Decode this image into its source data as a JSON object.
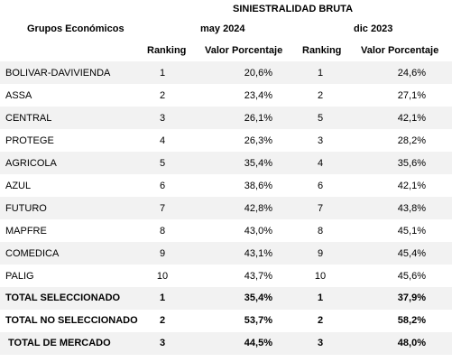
{
  "report": {
    "super_header": "SINIESTRALIDAD BRUTA",
    "group_header": "Grupos Económicos",
    "periods": [
      {
        "label": "may 2024",
        "col_rank": "Ranking",
        "col_value": "Valor Porcentaje"
      },
      {
        "label": "dic 2023",
        "col_rank": "Ranking",
        "col_value": "Valor Porcentaje"
      }
    ],
    "rows": [
      {
        "group": "BOLIVAR-DAVIVIENDA",
        "rank_1": "1",
        "value_1": "20,6%",
        "rank_2": "1",
        "value_2": "24,6%"
      },
      {
        "group": "ASSA",
        "rank_1": "2",
        "value_1": "23,4%",
        "rank_2": "2",
        "value_2": "27,1%"
      },
      {
        "group": "CENTRAL",
        "rank_1": "3",
        "value_1": "26,1%",
        "rank_2": "5",
        "value_2": "42,1%"
      },
      {
        "group": "PROTEGE",
        "rank_1": "4",
        "value_1": "26,3%",
        "rank_2": "3",
        "value_2": "28,2%"
      },
      {
        "group": "AGRICOLA",
        "rank_1": "5",
        "value_1": "35,4%",
        "rank_2": "4",
        "value_2": "35,6%"
      },
      {
        "group": "AZUL",
        "rank_1": "6",
        "value_1": "38,6%",
        "rank_2": "6",
        "value_2": "42,1%"
      },
      {
        "group": "FUTURO",
        "rank_1": "7",
        "value_1": "42,8%",
        "rank_2": "7",
        "value_2": "43,8%"
      },
      {
        "group": "MAPFRE",
        "rank_1": "8",
        "value_1": "43,0%",
        "rank_2": "8",
        "value_2": "45,1%"
      },
      {
        "group": "COMEDICA",
        "rank_1": "9",
        "value_1": "43,1%",
        "rank_2": "9",
        "value_2": "45,4%"
      },
      {
        "group": "PALIG",
        "rank_1": "10",
        "value_1": "43,7%",
        "rank_2": "10",
        "value_2": "45,6%"
      }
    ],
    "totals": [
      {
        "group": "TOTAL SELECCIONADO",
        "rank_1": "1",
        "value_1": "35,4%",
        "rank_2": "1",
        "value_2": "37,9%"
      },
      {
        "group": "TOTAL NO SELECCIONADO",
        "rank_1": "2",
        "value_1": "53,7%",
        "rank_2": "2",
        "value_2": "58,2%"
      },
      {
        "group": "TOTAL DE MERCADO",
        "rank_1": "3",
        "value_1": "44,5%",
        "rank_2": "3",
        "value_2": "48,0%"
      }
    ]
  }
}
